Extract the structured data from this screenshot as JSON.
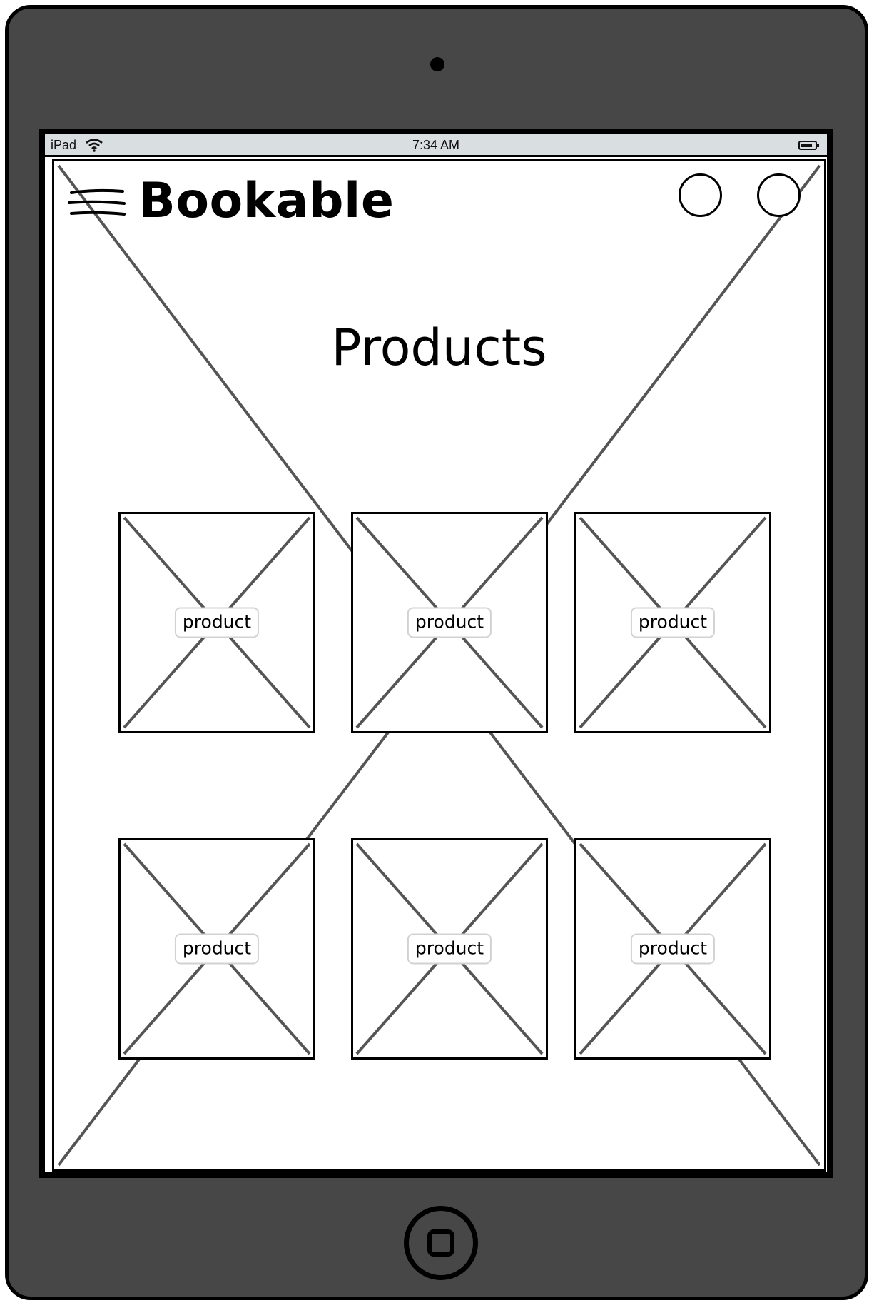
{
  "status_bar": {
    "device": "iPad",
    "time": "7:34 AM"
  },
  "app": {
    "brand": "Bookable",
    "menu_icon": "hamburger-icon",
    "header_buttons": [
      "circle-button",
      "circle-button"
    ]
  },
  "page": {
    "title": "Products"
  },
  "products": [
    {
      "label": "product"
    },
    {
      "label": "product"
    },
    {
      "label": "product"
    },
    {
      "label": "product"
    },
    {
      "label": "product"
    },
    {
      "label": "product"
    }
  ],
  "colors": {
    "device_body": "#474747",
    "status_bar": "#d9dee1",
    "placeholder_lines": "#555555"
  }
}
